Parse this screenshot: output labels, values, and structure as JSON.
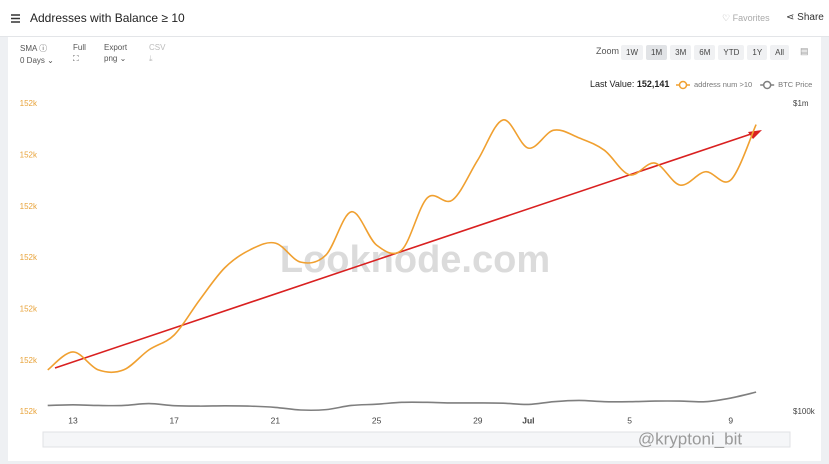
{
  "header": {
    "title": "Addresses with Balance ≥ 10",
    "favorites": "Favorites",
    "share": "Share"
  },
  "toolbar": {
    "sma": "SMA",
    "sma_value": "0 Days",
    "full": "Full",
    "export": "Export",
    "export_value": "png",
    "csv": "CSV",
    "zoom": "Zoom",
    "zoom_buttons": [
      "1W",
      "1M",
      "3M",
      "6M",
      "YTD",
      "1Y",
      "All"
    ]
  },
  "last_value": {
    "label": "Last Value:",
    "value": "152,141"
  },
  "watermarks": [
    "Looknode.com",
    "@kryptoni_bit"
  ],
  "chart_data": {
    "type": "line",
    "categories": [
      null,
      "13",
      null,
      null,
      null,
      "17",
      null,
      null,
      null,
      "21",
      null,
      null,
      null,
      "25",
      null,
      null,
      null,
      "29",
      null,
      "Jul",
      null,
      null,
      null,
      "5",
      null,
      null,
      null,
      "9",
      null
    ],
    "series": [
      {
        "name": "address num >10",
        "color": "#f0a030",
        "axis": "y",
        "values": [
          152093.2,
          152096.7,
          152093.2,
          152093.2,
          152097.1,
          152100,
          152106.8,
          152113.1,
          152116.6,
          152117.9,
          152114.2,
          152115.6,
          152124,
          152117.5,
          152116.6,
          152126.7,
          152126.3,
          152134.1,
          152141.9,
          152136.4,
          152139.9,
          152138.4,
          152136,
          152131.2,
          152133.5,
          152129.2,
          152131.8,
          152130.2,
          152141
        ]
      },
      {
        "name": "BTC Price",
        "color": "#7f7f7f",
        "axis": "y2",
        "values": [
          105000,
          105500,
          105000,
          105000,
          106500,
          104800,
          104500,
          104700,
          104500,
          103500,
          101500,
          101800,
          105000,
          106000,
          107500,
          107500,
          107000,
          107000,
          106800,
          105800,
          108000,
          109000,
          108000,
          108000,
          108500,
          108500,
          108000,
          111000,
          116000
        ]
      }
    ],
    "ylim": [
      152085,
      152145
    ],
    "yticks": [
      {
        "value": 152085,
        "label": "152k"
      },
      {
        "value": 152095,
        "label": "152k"
      },
      {
        "value": 152105,
        "label": "152k"
      },
      {
        "value": 152115,
        "label": "152k"
      },
      {
        "value": 152125,
        "label": "152k"
      },
      {
        "value": 152135,
        "label": "152k"
      },
      {
        "value": 152145,
        "label": "152k"
      }
    ],
    "y2lim": [
      100000,
      1000000
    ],
    "y2log": true,
    "y2ticks": [
      {
        "value": 100000,
        "label": "$100k"
      },
      {
        "value": 1000000,
        "label": "$1m"
      }
    ],
    "grid": false
  }
}
